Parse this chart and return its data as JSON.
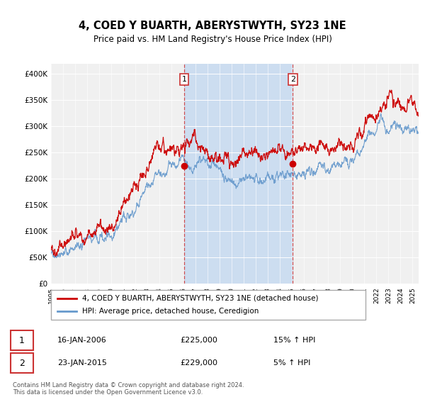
{
  "title": "4, COED Y BUARTH, ABERYSTWYTH, SY23 1NE",
  "subtitle": "Price paid vs. HM Land Registry's House Price Index (HPI)",
  "ylabel_ticks": [
    "£0",
    "£50K",
    "£100K",
    "£150K",
    "£200K",
    "£250K",
    "£300K",
    "£350K",
    "£400K"
  ],
  "ytick_values": [
    0,
    50000,
    100000,
    150000,
    200000,
    250000,
    300000,
    350000,
    400000
  ],
  "ylim": [
    0,
    420000
  ],
  "legend_label_red": "4, COED Y BUARTH, ABERYSTWYTH, SY23 1NE (detached house)",
  "legend_label_blue": "HPI: Average price, detached house, Ceredigion",
  "transaction1_date": "16-JAN-2006",
  "transaction1_price": "£225,000",
  "transaction1_hpi": "15% ↑ HPI",
  "transaction1_year": 2006.04,
  "transaction1_value": 225000,
  "transaction2_date": "23-JAN-2015",
  "transaction2_price": "£229,000",
  "transaction2_hpi": "5% ↑ HPI",
  "transaction2_year": 2015.06,
  "transaction2_value": 229000,
  "footer": "Contains HM Land Registry data © Crown copyright and database right 2024.\nThis data is licensed under the Open Government Licence v3.0.",
  "red_color": "#cc0000",
  "blue_color": "#6699cc",
  "vline_color": "#cc3333",
  "plot_bg_color": "#f0f0f0",
  "fill_color": "#ccddf0",
  "grid_color": "#ffffff"
}
